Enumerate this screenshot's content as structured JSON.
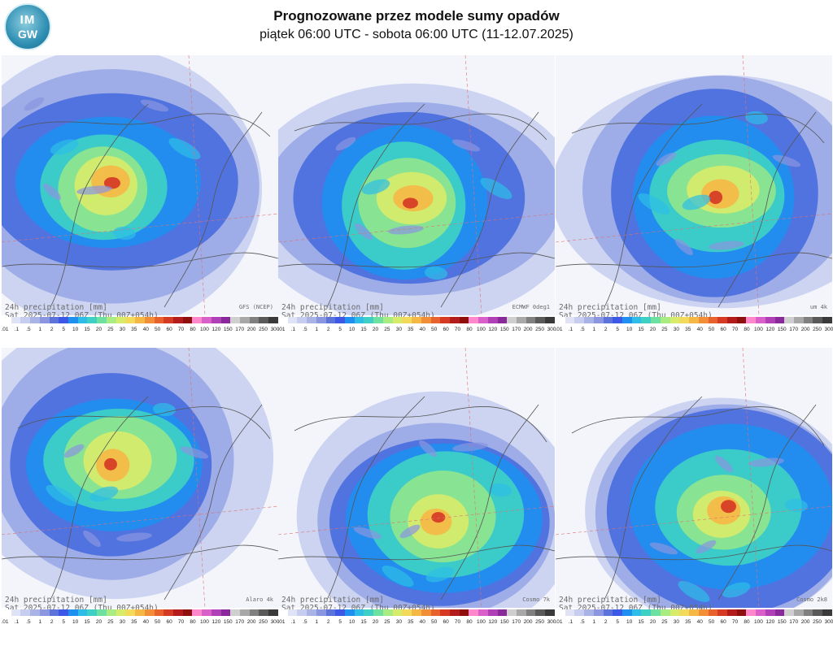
{
  "header": {
    "logo_top": "IM",
    "logo_bottom": "GW",
    "title": "Prognozowane przez modele sumy opadów",
    "subtitle": "piątek 06:00 UTC - sobota 06:00 UTC (11-12.07.2025)"
  },
  "colorbar": {
    "colors": [
      "#ffffff",
      "#dfe3f5",
      "#c7cdee",
      "#aab3e6",
      "#8a96df",
      "#5c73dc",
      "#3d58e6",
      "#1f8ff0",
      "#2dbde7",
      "#3ed0c4",
      "#6ee0a0",
      "#a8ec82",
      "#d6ec6a",
      "#f2da5a",
      "#f5b847",
      "#f28e37",
      "#e7622c",
      "#d63a25",
      "#b41c1c",
      "#8f0f0f",
      "#ff88cc",
      "#d860c8",
      "#b040b8",
      "#8a2a9a",
      "#cfcfcf",
      "#a8a8a8",
      "#808080",
      "#5a5a5a",
      "#3a3a3a"
    ],
    "ticks": [
      ".01",
      ".1",
      ".5",
      "1",
      "2",
      "5",
      "10",
      "15",
      "20",
      "25",
      "30",
      "35",
      "40",
      "50",
      "60",
      "70",
      "80",
      "100",
      "120",
      "150",
      "170",
      "200",
      "250",
      "300"
    ]
  },
  "panels": [
    {
      "line1": "24h precipitation   [mm]",
      "line2": "Sat 2025-07-12 06Z (Thu 00Z+054h)",
      "model": "GFS (NCEP)"
    },
    {
      "line1": "24h precipitation   [mm]",
      "line2": "Sat 2025-07-12 06Z (Thu 00Z+054h)",
      "model": "ECMWF 0deg1"
    },
    {
      "line1": "24h precipitation   [mm]",
      "line2": "Sat 2025-07-12 06Z (Thu 00Z+054h)",
      "model": "um 4k"
    },
    {
      "line1": "24h precipitation   [mm]",
      "line2": "Sat 2025-07-12 06Z (Thu 00Z+054h)",
      "model": "Alaro 4k"
    },
    {
      "line1": "24h precipitation   [mm]",
      "line2": "Sat 2025-07-12 06Z (Thu 00Z+054h)",
      "model": "Cosmo 7k"
    },
    {
      "line1": "24h precipitation   [mm]",
      "line2": "Sat 2025-07-12 06Z (Thu 00Z+054h)",
      "model": "Cosmo 2k8"
    }
  ]
}
